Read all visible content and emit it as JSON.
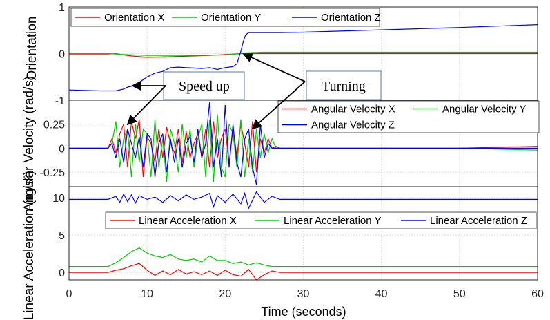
{
  "chart_data": [
    {
      "type": "line",
      "ylabel": "Orientation",
      "ylim": [
        -1,
        1
      ],
      "yticks": [
        "-1",
        "0",
        "1"
      ],
      "grid": true,
      "legend": "top, horizontal",
      "series": [
        {
          "name": "Orientation X",
          "color": "#ff0000",
          "x": [
            0,
            5,
            6,
            7,
            8,
            10,
            12,
            14,
            16,
            18,
            20,
            21,
            22,
            23,
            25,
            30,
            40,
            50,
            60
          ],
          "y": [
            -0.01,
            -0.01,
            0.0,
            -0.03,
            -0.05,
            -0.08,
            -0.07,
            -0.06,
            -0.05,
            -0.04,
            -0.02,
            -0.01,
            0.0,
            0.0,
            0.0,
            0.0,
            0.0,
            0.0,
            0.0
          ]
        },
        {
          "name": "Orientation Y",
          "color": "#00cc00",
          "x": [
            0,
            5,
            7,
            10,
            15,
            20,
            22,
            23,
            25,
            30,
            40,
            50,
            60
          ],
          "y": [
            0.0,
            0.0,
            -0.02,
            -0.04,
            -0.04,
            -0.03,
            0.0,
            0.02,
            0.03,
            0.03,
            0.03,
            0.03,
            0.03
          ]
        },
        {
          "name": "Orientation Z",
          "color": "#0000ff",
          "x": [
            0,
            2,
            4,
            5,
            6,
            7,
            7.5,
            8,
            9,
            10,
            11,
            12,
            13,
            14,
            15,
            16,
            17,
            18,
            19,
            20,
            21,
            21.5,
            22,
            22.3,
            22.6,
            23,
            25,
            27,
            30,
            40,
            50,
            60
          ],
          "y": [
            -0.78,
            -0.79,
            -0.8,
            -0.8,
            -0.8,
            -0.76,
            -0.72,
            -0.7,
            -0.62,
            -0.5,
            -0.42,
            -0.38,
            -0.3,
            -0.29,
            -0.3,
            -0.31,
            -0.32,
            -0.3,
            -0.34,
            -0.3,
            -0.28,
            -0.22,
            0.05,
            0.25,
            0.4,
            0.45,
            0.45,
            0.45,
            0.46,
            0.51,
            0.56,
            0.62
          ]
        }
      ]
    },
    {
      "type": "line",
      "ylabel": "Angular Velocity (rad/s)",
      "ylim": [
        -0.4,
        0.5
      ],
      "yticks": [
        "0.25",
        "0",
        "-0.25"
      ],
      "grid": true,
      "legend": "top-right",
      "series": [
        {
          "name": "Angular Velocity X",
          "color": "#ff0000",
          "x": [
            0,
            5,
            5.5,
            6,
            6.5,
            7,
            7.5,
            8,
            8.5,
            9,
            9.5,
            10,
            10.5,
            11,
            11.5,
            12,
            12.5,
            13,
            13.5,
            14,
            14.5,
            15,
            15.5,
            16,
            16.5,
            17,
            17.5,
            18,
            18.5,
            19,
            19.5,
            20,
            20.5,
            21,
            21.5,
            22,
            22.5,
            23,
            23.5,
            24,
            24.5,
            25,
            25.5,
            26,
            26.5,
            27,
            30,
            40,
            50,
            60
          ],
          "y": [
            0,
            0,
            0.1,
            -0.05,
            0.15,
            0.25,
            -0.2,
            0.28,
            0.1,
            0.3,
            -0.3,
            0.12,
            0.05,
            -0.15,
            0.2,
            -0.1,
            0.22,
            0.05,
            -0.05,
            0.2,
            -0.15,
            0.18,
            -0.1,
            0.05,
            0.15,
            -0.1,
            0.2,
            -0.2,
            0.28,
            -0.1,
            0.1,
            0.2,
            -0.15,
            0.2,
            -0.08,
            0.25,
            0.05,
            -0.2,
            0.28,
            -0.25,
            0.1,
            -0.05,
            0.1,
            0.0,
            0.02,
            0.0,
            0.0,
            0.0,
            0.0,
            0.02
          ]
        },
        {
          "name": "Angular Velocity Y",
          "color": "#00cc00",
          "x": [
            0,
            5,
            5.5,
            6,
            6.5,
            7,
            7.5,
            8,
            8.5,
            9,
            9.5,
            10,
            10.5,
            11,
            11.5,
            12,
            12.5,
            13,
            13.5,
            14,
            14.5,
            15,
            15.5,
            16,
            16.5,
            17,
            17.5,
            18,
            18.5,
            19,
            19.5,
            20,
            20.5,
            21,
            21.5,
            22,
            22.5,
            23,
            23.5,
            24,
            24.5,
            25,
            25.5,
            26,
            26.5,
            27,
            30,
            40,
            50,
            60
          ],
          "y": [
            0,
            0,
            0.05,
            0.28,
            -0.2,
            0.1,
            0.2,
            -0.3,
            0.25,
            -0.15,
            0.2,
            0.15,
            -0.3,
            0.3,
            -0.2,
            0.1,
            -0.35,
            0.2,
            0.05,
            -0.25,
            0.25,
            -0.1,
            0.2,
            -0.2,
            0.1,
            0.25,
            -0.3,
            0.3,
            -0.35,
            0.35,
            -0.2,
            -0.3,
            0.25,
            0.15,
            -0.2,
            0.3,
            -0.3,
            0.1,
            -0.25,
            0.2,
            -0.1,
            0.15,
            -0.05,
            0.1,
            0.0,
            0.0,
            0.0,
            0.0,
            0.0,
            -0.02
          ]
        },
        {
          "name": "Angular Velocity Z",
          "color": "#0000ff",
          "x": [
            0,
            5,
            5.5,
            6,
            6.5,
            7,
            7.5,
            8,
            8.5,
            9,
            9.5,
            10,
            10.5,
            11,
            11.5,
            12,
            12.5,
            13,
            13.5,
            14,
            14.5,
            15,
            15.5,
            16,
            16.5,
            17,
            17.5,
            18,
            18.5,
            19,
            19.5,
            20,
            20.5,
            21,
            21.5,
            22,
            22.5,
            23,
            23.5,
            24,
            24.5,
            25,
            25.5,
            26,
            26.5,
            27,
            30,
            40,
            50,
            60
          ],
          "y": [
            0,
            0,
            0.05,
            -0.1,
            0.1,
            -0.15,
            0.2,
            0.05,
            -0.1,
            0.12,
            -0.2,
            0.15,
            0.1,
            -0.3,
            0.05,
            0.15,
            -0.25,
            0.1,
            -0.15,
            0.1,
            -0.2,
            0.05,
            0.12,
            -0.15,
            0.2,
            -0.1,
            0.05,
            0.48,
            -0.2,
            0.1,
            -0.3,
            0.45,
            -0.2,
            0.25,
            -0.15,
            -0.3,
            0.1,
            0.2,
            -0.2,
            -0.38,
            0.25,
            -0.1,
            0.05,
            0.0,
            0.0,
            0.0,
            0.0,
            0.0,
            0.0,
            0.0
          ]
        }
      ]
    },
    {
      "type": "line",
      "ylabel": "Linear Acceleration (m/s²)",
      "ylim": [
        -1,
        11.5
      ],
      "yticks": [
        "10",
        "5",
        "0"
      ],
      "grid": true,
      "legend": "upper-right",
      "series": [
        {
          "name": "Linear Acceleration X",
          "color": "#ff0000",
          "x": [
            0,
            5,
            6,
            7,
            8,
            9,
            10,
            11,
            12,
            13,
            14,
            15,
            16,
            17,
            18,
            19,
            20,
            21,
            22,
            23,
            24,
            25,
            26,
            27,
            30,
            40,
            50,
            60
          ],
          "y": [
            0.0,
            0.0,
            0.3,
            0.5,
            0.9,
            1.2,
            0.3,
            -0.4,
            0.2,
            -0.3,
            0.4,
            -0.2,
            0.1,
            -0.3,
            0.2,
            -0.4,
            0.3,
            -0.3,
            -0.5,
            0.4,
            -1.0,
            -0.3,
            0.2,
            0.0,
            0.0,
            0.0,
            0.0,
            0.0
          ]
        },
        {
          "name": "Linear Acceleration Y",
          "color": "#00cc00",
          "x": [
            0,
            5,
            6,
            7,
            8,
            9,
            10,
            11,
            12,
            13,
            14,
            15,
            16,
            17,
            18,
            19,
            20,
            21,
            22,
            23,
            24,
            25,
            26,
            27,
            30,
            40,
            50,
            60
          ],
          "y": [
            0.8,
            0.8,
            1.3,
            2.0,
            2.8,
            3.3,
            2.6,
            2.2,
            2.0,
            2.4,
            1.8,
            1.6,
            1.8,
            1.4,
            2.2,
            1.6,
            1.6,
            1.2,
            1.4,
            1.0,
            1.3,
            1.0,
            0.8,
            0.8,
            0.8,
            0.8,
            0.8,
            0.8
          ]
        },
        {
          "name": "Linear Acceleration Z",
          "color": "#0000ff",
          "x": [
            0,
            5,
            6,
            6.5,
            7,
            7.5,
            8,
            8.5,
            9,
            10,
            11,
            12,
            13,
            14,
            15,
            16,
            17,
            18,
            18.5,
            19,
            20,
            21,
            22,
            22.5,
            23,
            24,
            25,
            26,
            27,
            30,
            40,
            50,
            60
          ],
          "y": [
            9.8,
            9.8,
            10.2,
            9.4,
            10.5,
            9.5,
            10.4,
            9.3,
            10.3,
            9.8,
            10.1,
            9.4,
            10.3,
            9.6,
            10.4,
            9.8,
            10.1,
            10.6,
            8.8,
            10.3,
            9.4,
            10.5,
            9.2,
            10.6,
            8.6,
            10.8,
            9.4,
            10.2,
            9.8,
            9.8,
            9.8,
            9.8,
            9.8
          ]
        }
      ]
    }
  ],
  "x_axis": {
    "label": "Time (seconds)",
    "xlim": [
      0,
      60
    ],
    "ticks": [
      "0",
      "10",
      "20",
      "30",
      "40",
      "50",
      "60"
    ]
  },
  "annotations": {
    "speed_up": "Speed up",
    "turning": "Turning"
  }
}
